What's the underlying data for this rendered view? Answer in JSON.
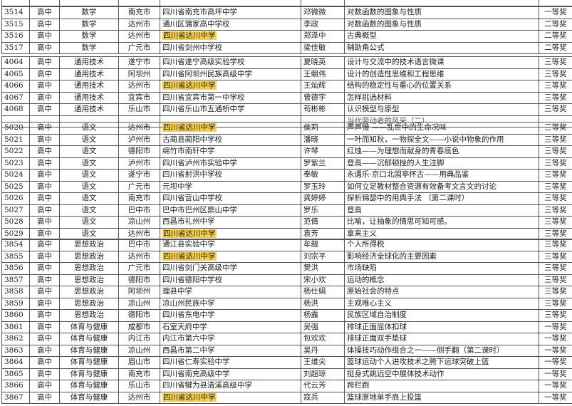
{
  "highlight_color": "#f7cf4f",
  "highlighted_school": "四川省达川中学",
  "blocks": [
    {
      "rows": [
        [
          "3514",
          "高中",
          "数学",
          "南充市",
          "四川省南充市高坪中学",
          "邓微微",
          "对数函数的图象与性质",
          "一等奖"
        ],
        [
          "3515",
          "高中",
          "数学",
          "达州市",
          "通川区蒲家高中学校",
          "李政",
          "对数函数的图象与性质",
          "二等奖"
        ],
        [
          "3516",
          "高中",
          "数学",
          "达州市",
          "四川省达川中学",
          "郑泽中",
          "古典概型",
          "二等奖"
        ],
        [
          "3517",
          "高中",
          "数学",
          "广元市",
          "四川省剑州中学校",
          "梁佳敏",
          "辅助角公式",
          "二等奖"
        ]
      ]
    },
    {
      "rows": [
        [
          "4064",
          "高中",
          "通用技术",
          "遂宁市",
          "四川省遂宁高级实验学校",
          "夏晓英",
          "设计与交流中的技术语言微课",
          "三等奖"
        ],
        [
          "4065",
          "高中",
          "通用技术",
          "阿坝州",
          "四川省阿坝州民族高级中学",
          "王朝伟",
          "设计的创造性思维和工程思维",
          "三等奖"
        ],
        [
          "4066",
          "高中",
          "通用技术",
          "达州市",
          "四川省达川中学",
          "王灿辉",
          "结构的稳定性与重心的位置关系",
          "三等奖"
        ],
        [
          "4067",
          "高中",
          "通用技术",
          "宜宾市",
          "四川省宜宾市第一中学校",
          "曾德宇",
          "怎样挑选材料",
          "三等奖"
        ],
        [
          "4068",
          "高中",
          "通用技术",
          "乐山市",
          "四川省乐山市五通桥中学",
          "苟彬彬",
          "认识模型与原型",
          "三等奖"
        ]
      ]
    },
    {
      "partial_title": "当代劳动者的风采（二）"
    },
    {
      "rows": [
        [
          "5020",
          "高中",
          "语文",
          "达州市",
          "四川省达川中学",
          "侯莉",
          "声声慢 ——乱世中的生命况味",
          "三等奖"
        ],
        [
          "5021",
          "高中",
          "语文",
          "泸州市",
          "古蔺县蔺阳中学校",
          "潘晓",
          "一叶而知秋，一物探全文——小说中物象的作用",
          "三等奖"
        ],
        [
          "5022",
          "高中",
          "语文",
          "德阳市",
          "绵竹市南轩中学",
          "许琴",
          "红烛——为理想而献身的青春底色",
          "三等奖"
        ],
        [
          "5023",
          "高中",
          "语文",
          "泸州市",
          "四川省泸州市实验中学",
          "罗紫兰",
          "登高——沉郁顿挫的人生注脚",
          "三等奖"
        ],
        [
          "5024",
          "高中",
          "语文",
          "遂宁市",
          "四川省射洪中学校",
          "奉敏",
          "永遇乐·京口北固亭怀古——用典品鉴",
          "三等奖"
        ],
        [
          "5025",
          "高中",
          "语文",
          "广元市",
          "元坝中学",
          "罗玉玲",
          "如何立足教材整合资源有效备考文言文的讨论",
          "三等奖"
        ],
        [
          "5026",
          "高中",
          "语文",
          "南充市",
          "四川省营山中学校",
          "龚婷婷",
          "探析锦瑟中的用典手法 （第二课时）",
          "三等奖"
        ],
        [
          "5027",
          "高中",
          "语文",
          "巴中市",
          "巴中市巴州区鼎山中学",
          "罗乐",
          "登高",
          "三等奖"
        ],
        [
          "5028",
          "高中",
          "语文",
          "凉山州",
          "西昌市礼州中学",
          "范倩",
          "比喻，让抽象的情思可知可感。",
          "三等奖"
        ],
        [
          "5029",
          "高中",
          "语文",
          "达州市",
          "四川省达川中学",
          "袁芳",
          "拿来主义",
          "三等奖"
        ]
      ]
    },
    {
      "rows": [
        [
          "3854",
          "高中",
          "思想政治",
          "巴中市",
          "通江县实验中学",
          "牟靓",
          "个人所得税",
          "三等奖"
        ],
        [
          "3855",
          "高中",
          "思想政治",
          "达州市",
          "四川省达川中学",
          "刘宗平",
          "影响经济全球化的主要因素",
          "三等奖"
        ],
        [
          "3856",
          "高中",
          "思想政治",
          "广元市",
          "四川省剑门关高级中学",
          "樊洪",
          "市场缺陷",
          "三等奖"
        ],
        [
          "3857",
          "高中",
          "思想政治",
          "德阳市",
          "四川省德阳中学校",
          "宋小欢",
          "运动的概念",
          "三等奖"
        ],
        [
          "3858",
          "高中",
          "思想政治",
          "阿坝州",
          "理县中学",
          "杨仕娟",
          "原始社会的特点",
          "三等奖"
        ],
        [
          "3859",
          "高中",
          "思想政治",
          "凉山州",
          "凉山州民族中学",
          "杨洪",
          "主观唯心主义",
          "三等奖"
        ],
        [
          "3860",
          "高中",
          "思想政治",
          "德阳市",
          "四川省东电中学",
          "杨露",
          "民族区域自治制度",
          "三等奖"
        ],
        [
          "3861",
          "高中",
          "体育与健康",
          "成都市",
          "石室天府中学",
          "吴强",
          "排球正面屈体扣球",
          "一等奖"
        ],
        [
          "3862",
          "高中",
          "体育与健康",
          "内江市",
          "内江市第六中学",
          "包欢欢",
          "排球正面双手垫球",
          "一等奖"
        ],
        [
          "3863",
          "高中",
          "体育与健康",
          "凉山州",
          "西昌市第二中学",
          "吴丹",
          "体操技巧动作组合之一——侧手翻（第二课时）",
          "一等奖"
        ],
        [
          "3864",
          "高中",
          "体育与健康",
          "眉山市",
          "四川省仁寿实验中学",
          "王维尖",
          "篮球运动个人进攻技术之胯下运球突破上篮",
          "一等奖"
        ],
        [
          "3865",
          "高中",
          "体育与健康",
          "南充市",
          "四川省南充高级中学",
          "刘超琼",
          "挺身式跳远空中展体技术动作",
          "一等奖"
        ],
        [
          "3866",
          "高中",
          "体育与健康",
          "乐山市",
          "四川省犍为县清溪高级中学",
          "代云芳",
          "跨栏跑",
          "一等奖"
        ],
        [
          "3867",
          "高中",
          "体育与健康",
          "达州市",
          "四川省达川中学",
          "寇兵",
          "篮球原地单手肩上投篮",
          "一等奖"
        ]
      ]
    }
  ]
}
